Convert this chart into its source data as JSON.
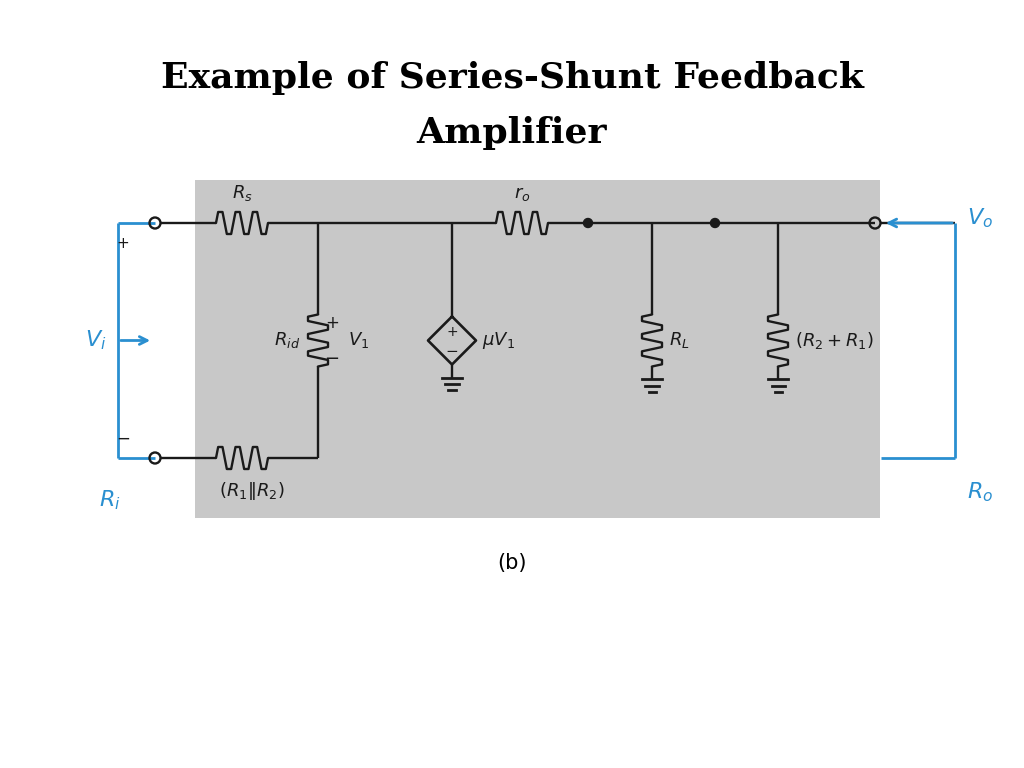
{
  "title_line1": "Example of Series-Shunt Feedback",
  "title_line2": "Amplifier",
  "title_fontsize": 26,
  "title_fontweight": "bold",
  "bg_color": "#ffffff",
  "gray_box_color": "#c8c8c8",
  "circuit_color": "#1a1a1a",
  "blue_color": "#2a8fd0",
  "caption": "(b)",
  "caption_fontsize": 15
}
